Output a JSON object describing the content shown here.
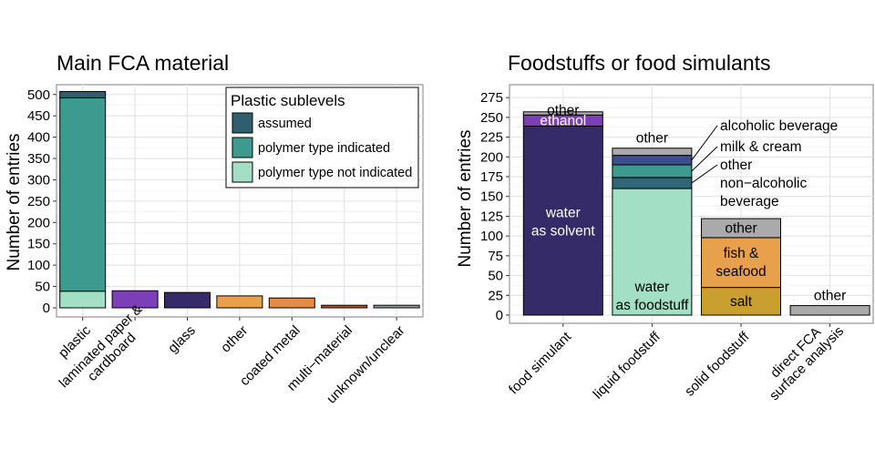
{
  "chart_data": [
    {
      "type": "bar",
      "stacked": true,
      "title": "Main FCA material",
      "xlabel": "",
      "ylabel": "Number of entries",
      "ylim": [
        0,
        525
      ],
      "yticks": [
        0,
        50,
        100,
        150,
        200,
        250,
        300,
        350,
        400,
        450,
        500
      ],
      "grid": true,
      "legend": {
        "title": "Plastic sublevels",
        "placement": "top-right",
        "entries": [
          {
            "label": "assumed",
            "color": "#2f5f6e"
          },
          {
            "label": "polymer type indicated",
            "color": "#3c9b8e"
          },
          {
            "label": "polymer type not indicated",
            "color": "#a3dfc5"
          }
        ]
      },
      "categories": [
        {
          "label": [
            "plastic"
          ],
          "segments": [
            {
              "name": "polymer type not indicated",
              "value": 39,
              "color": "#a3dfc5"
            },
            {
              "name": "polymer type indicated",
              "value": 453,
              "color": "#3c9b8e"
            },
            {
              "name": "assumed",
              "value": 15,
              "color": "#2f5f6e"
            }
          ]
        },
        {
          "label": [
            "laminated paper &",
            "cardboard"
          ],
          "segments": [
            {
              "value": 40,
              "color": "#7c3fb6"
            }
          ]
        },
        {
          "label": [
            "glass"
          ],
          "segments": [
            {
              "value": 36,
              "color": "#362a6a"
            }
          ]
        },
        {
          "label": [
            "other"
          ],
          "segments": [
            {
              "value": 28,
              "color": "#e8a04c"
            }
          ]
        },
        {
          "label": [
            "coated metal"
          ],
          "segments": [
            {
              "value": 23,
              "color": "#e38c47"
            }
          ]
        },
        {
          "label": [
            "multi−material"
          ],
          "segments": [
            {
              "value": 6,
              "color": "#b2583b"
            }
          ]
        },
        {
          "label": [
            "unknown/unclear"
          ],
          "segments": [
            {
              "value": 6,
              "color": "#9aa0a2"
            }
          ]
        }
      ]
    },
    {
      "type": "bar",
      "stacked": true,
      "title": "Foodstuffs or food simulants",
      "xlabel": "",
      "ylabel": "Number of entries",
      "ylim": [
        0,
        280
      ],
      "yticks": [
        0,
        25,
        50,
        75,
        100,
        125,
        150,
        175,
        200,
        225,
        250,
        275
      ],
      "grid": true,
      "categories": [
        {
          "label": [
            "food simulant"
          ],
          "segments": [
            {
              "name": "water as solvent",
              "value": 239,
              "color": "#352b69",
              "label": [
                "water",
                "as solvent"
              ],
              "label_color": "#ffffff"
            },
            {
              "name": "ethanol",
              "value": 14,
              "color": "#7c3fb6",
              "label": [
                "ethanol"
              ],
              "label_color": "#ffffff"
            },
            {
              "name": "other",
              "value": 4,
              "color": "#aaaaaa",
              "label": [
                "other"
              ],
              "label_color": "#000000"
            }
          ]
        },
        {
          "label": [
            "liquid foodstuff"
          ],
          "segments": [
            {
              "name": "water as foodstuff",
              "value": 160,
              "color": "#a3dfc5",
              "label": [
                "water",
                "as foodstuff"
              ],
              "label_color": "#000000"
            },
            {
              "name": "other non−alcoholic beverage",
              "value": 14,
              "color": "#2f6574",
              "callout": [
                "other",
                "non−alcoholic",
                "beverage"
              ]
            },
            {
              "name": "milk & cream",
              "value": 16,
              "color": "#3c9b8e",
              "callout": [
                "milk & cream"
              ]
            },
            {
              "name": "alcoholic beverage",
              "value": 12,
              "color": "#3e4e8c",
              "callout": [
                "alcoholic beverage"
              ]
            },
            {
              "name": "other",
              "value": 9,
              "color": "#aaaaaa",
              "label_above": [
                "other"
              ]
            }
          ]
        },
        {
          "label": [
            "solid foodstuff"
          ],
          "segments": [
            {
              "name": "salt",
              "value": 35,
              "color": "#c9a030",
              "label": [
                "salt"
              ],
              "label_color": "#000000"
            },
            {
              "name": "fish & seafood",
              "value": 63,
              "color": "#e8a04c",
              "label": [
                "fish &",
                "seafood"
              ],
              "label_color": "#000000"
            },
            {
              "name": "other",
              "value": 24,
              "color": "#aaaaaa",
              "label": [
                "other"
              ],
              "label_color": "#000000"
            }
          ]
        },
        {
          "label": [
            "direct FCA",
            "surface analysis"
          ],
          "segments": [
            {
              "name": "other",
              "value": 12,
              "color": "#aaaaaa",
              "label_above": [
                "other"
              ]
            }
          ]
        }
      ]
    }
  ]
}
